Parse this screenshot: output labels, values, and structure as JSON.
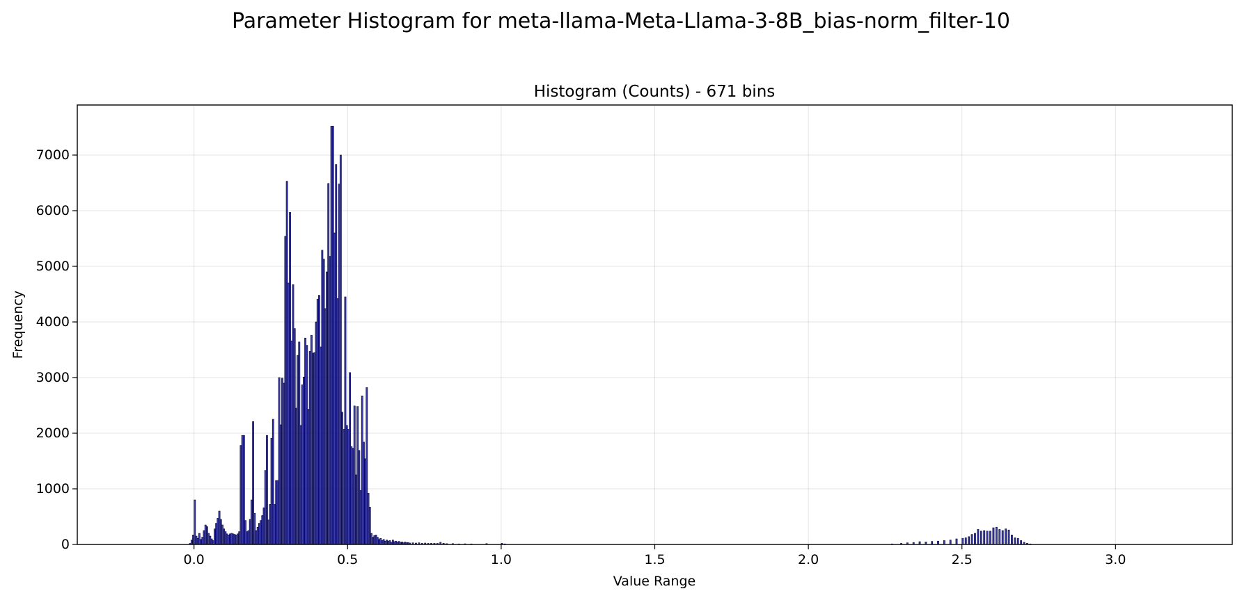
{
  "chart_data": {
    "type": "bar",
    "title": "Parameter Histogram for meta-llama-Meta-Llama-3-8B_bias-norm_filter-10",
    "subtitle": "Histogram (Counts) - 671 bins",
    "xlabel": "Value Range",
    "ylabel": "Frequency",
    "xlim": [
      -0.38,
      3.38
    ],
    "ylim": [
      0,
      7900
    ],
    "x_ticks": [
      0.0,
      0.5,
      1.0,
      1.5,
      2.0,
      2.5,
      3.0
    ],
    "x_tick_labels": [
      "0.0",
      "0.5",
      "1.0",
      "1.5",
      "2.0",
      "2.5",
      "3.0"
    ],
    "y_ticks": [
      0,
      1000,
      2000,
      3000,
      4000,
      5000,
      6000,
      7000
    ],
    "y_tick_labels": [
      "0",
      "1000",
      "2000",
      "3000",
      "4000",
      "5000",
      "6000",
      "7000"
    ],
    "grid": true,
    "bin_width": 0.005,
    "colors": {
      "bar_fill": "#1a1a9c",
      "bar_edge": "#000033"
    },
    "bins": [
      [
        -0.015,
        20
      ],
      [
        -0.01,
        80
      ],
      [
        -0.005,
        170
      ],
      [
        0.0,
        800
      ],
      [
        0.005,
        150
      ],
      [
        0.01,
        110
      ],
      [
        0.015,
        200
      ],
      [
        0.02,
        90
      ],
      [
        0.025,
        130
      ],
      [
        0.03,
        250
      ],
      [
        0.035,
        350
      ],
      [
        0.04,
        320
      ],
      [
        0.045,
        200
      ],
      [
        0.05,
        150
      ],
      [
        0.055,
        100
      ],
      [
        0.06,
        70
      ],
      [
        0.065,
        280
      ],
      [
        0.07,
        380
      ],
      [
        0.075,
        470
      ],
      [
        0.08,
        600
      ],
      [
        0.085,
        450
      ],
      [
        0.09,
        350
      ],
      [
        0.095,
        280
      ],
      [
        0.1,
        230
      ],
      [
        0.105,
        190
      ],
      [
        0.11,
        170
      ],
      [
        0.115,
        190
      ],
      [
        0.12,
        200
      ],
      [
        0.125,
        190
      ],
      [
        0.13,
        180
      ],
      [
        0.135,
        170
      ],
      [
        0.14,
        190
      ],
      [
        0.145,
        230
      ],
      [
        0.15,
        1780
      ],
      [
        0.155,
        1960
      ],
      [
        0.16,
        1960
      ],
      [
        0.165,
        430
      ],
      [
        0.17,
        230
      ],
      [
        0.175,
        250
      ],
      [
        0.18,
        450
      ],
      [
        0.185,
        800
      ],
      [
        0.19,
        2210
      ],
      [
        0.195,
        560
      ],
      [
        0.2,
        250
      ],
      [
        0.205,
        310
      ],
      [
        0.21,
        380
      ],
      [
        0.215,
        430
      ],
      [
        0.22,
        520
      ],
      [
        0.225,
        660
      ],
      [
        0.23,
        1330
      ],
      [
        0.235,
        1960
      ],
      [
        0.24,
        440
      ],
      [
        0.245,
        720
      ],
      [
        0.25,
        1910
      ],
      [
        0.255,
        2250
      ],
      [
        0.26,
        720
      ],
      [
        0.265,
        1150
      ],
      [
        0.27,
        1150
      ],
      [
        0.275,
        3000
      ],
      [
        0.28,
        2150
      ],
      [
        0.285,
        2990
      ],
      [
        0.29,
        2900
      ],
      [
        0.295,
        5540
      ],
      [
        0.3,
        6530
      ],
      [
        0.305,
        4700
      ],
      [
        0.31,
        5970
      ],
      [
        0.315,
        3660
      ],
      [
        0.32,
        4670
      ],
      [
        0.325,
        3880
      ],
      [
        0.33,
        2450
      ],
      [
        0.335,
        3400
      ],
      [
        0.34,
        3640
      ],
      [
        0.345,
        2140
      ],
      [
        0.35,
        2870
      ],
      [
        0.355,
        3010
      ],
      [
        0.36,
        3710
      ],
      [
        0.365,
        3580
      ],
      [
        0.37,
        2430
      ],
      [
        0.375,
        3470
      ],
      [
        0.38,
        3760
      ],
      [
        0.385,
        3440
      ],
      [
        0.39,
        3450
      ],
      [
        0.395,
        4000
      ],
      [
        0.4,
        4410
      ],
      [
        0.405,
        4480
      ],
      [
        0.41,
        3550
      ],
      [
        0.415,
        5290
      ],
      [
        0.42,
        5130
      ],
      [
        0.425,
        4240
      ],
      [
        0.43,
        4900
      ],
      [
        0.435,
        6490
      ],
      [
        0.44,
        5180
      ],
      [
        0.445,
        7520
      ],
      [
        0.45,
        7520
      ],
      [
        0.455,
        5600
      ],
      [
        0.46,
        6830
      ],
      [
        0.465,
        4420
      ],
      [
        0.47,
        6480
      ],
      [
        0.475,
        7000
      ],
      [
        0.48,
        2380
      ],
      [
        0.485,
        2070
      ],
      [
        0.49,
        4450
      ],
      [
        0.495,
        2140
      ],
      [
        0.5,
        2070
      ],
      [
        0.505,
        3090
      ],
      [
        0.51,
        1760
      ],
      [
        0.515,
        1730
      ],
      [
        0.52,
        2490
      ],
      [
        0.525,
        1250
      ],
      [
        0.53,
        2480
      ],
      [
        0.535,
        1690
      ],
      [
        0.54,
        970
      ],
      [
        0.545,
        2670
      ],
      [
        0.55,
        1840
      ],
      [
        0.555,
        1540
      ],
      [
        0.56,
        2820
      ],
      [
        0.565,
        920
      ],
      [
        0.57,
        670
      ],
      [
        0.575,
        200
      ],
      [
        0.58,
        130
      ],
      [
        0.585,
        160
      ],
      [
        0.59,
        170
      ],
      [
        0.595,
        130
      ],
      [
        0.6,
        90
      ],
      [
        0.605,
        110
      ],
      [
        0.61,
        70
      ],
      [
        0.615,
        90
      ],
      [
        0.62,
        60
      ],
      [
        0.625,
        80
      ],
      [
        0.63,
        60
      ],
      [
        0.635,
        70
      ],
      [
        0.64,
        40
      ],
      [
        0.645,
        80
      ],
      [
        0.65,
        50
      ],
      [
        0.655,
        60
      ],
      [
        0.66,
        40
      ],
      [
        0.665,
        55
      ],
      [
        0.67,
        40
      ],
      [
        0.675,
        45
      ],
      [
        0.68,
        30
      ],
      [
        0.685,
        45
      ],
      [
        0.69,
        30
      ],
      [
        0.695,
        35
      ],
      [
        0.7,
        25
      ],
      [
        0.71,
        30
      ],
      [
        0.72,
        25
      ],
      [
        0.73,
        30
      ],
      [
        0.74,
        20
      ],
      [
        0.75,
        25
      ],
      [
        0.76,
        20
      ],
      [
        0.77,
        20
      ],
      [
        0.78,
        20
      ],
      [
        0.79,
        20
      ],
      [
        0.8,
        40
      ],
      [
        0.81,
        20
      ],
      [
        0.82,
        15
      ],
      [
        0.84,
        15
      ],
      [
        0.86,
        10
      ],
      [
        0.88,
        12
      ],
      [
        0.9,
        10
      ],
      [
        0.95,
        15
      ],
      [
        1.0,
        20
      ],
      [
        1.01,
        10
      ],
      [
        2.27,
        10
      ],
      [
        2.3,
        20
      ],
      [
        2.32,
        30
      ],
      [
        2.34,
        35
      ],
      [
        2.36,
        50
      ],
      [
        2.38,
        45
      ],
      [
        2.4,
        55
      ],
      [
        2.42,
        60
      ],
      [
        2.44,
        70
      ],
      [
        2.46,
        80
      ],
      [
        2.48,
        100
      ],
      [
        2.5,
        110
      ],
      [
        2.51,
        120
      ],
      [
        2.52,
        140
      ],
      [
        2.53,
        180
      ],
      [
        2.54,
        200
      ],
      [
        2.55,
        270
      ],
      [
        2.56,
        240
      ],
      [
        2.57,
        250
      ],
      [
        2.58,
        240
      ],
      [
        2.59,
        240
      ],
      [
        2.6,
        300
      ],
      [
        2.61,
        310
      ],
      [
        2.62,
        270
      ],
      [
        2.63,
        250
      ],
      [
        2.64,
        280
      ],
      [
        2.65,
        260
      ],
      [
        2.66,
        170
      ],
      [
        2.67,
        120
      ],
      [
        2.68,
        110
      ],
      [
        2.69,
        70
      ],
      [
        2.7,
        40
      ],
      [
        2.71,
        20
      ],
      [
        2.72,
        10
      ]
    ]
  }
}
